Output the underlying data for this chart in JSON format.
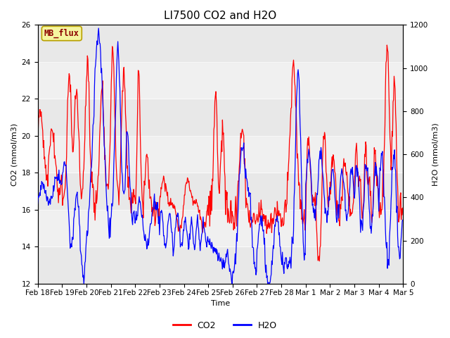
{
  "title": "LI7500 CO2 and H2O",
  "xlabel": "Time",
  "ylabel_left": "CO2 (mmol/m3)",
  "ylabel_right": "H2O (mmol/m3)",
  "ylim_left": [
    12,
    26
  ],
  "ylim_right": [
    0,
    1200
  ],
  "site_label": "MB_flux",
  "legend_entries": [
    "CO2",
    "H2O"
  ],
  "line_colors": [
    "red",
    "blue"
  ],
  "fig_bg": "#ffffff",
  "plot_bg": "#f0f0f0",
  "band_colors": [
    "#e8e8e8",
    "#f0f0f0"
  ],
  "title_fontsize": 11,
  "axis_fontsize": 8,
  "tick_fontsize": 7.5,
  "legend_fontsize": 9,
  "yticks_left": [
    12,
    14,
    16,
    18,
    20,
    22,
    24,
    26
  ],
  "yticks_right": [
    0,
    200,
    400,
    600,
    800,
    1000,
    1200
  ]
}
